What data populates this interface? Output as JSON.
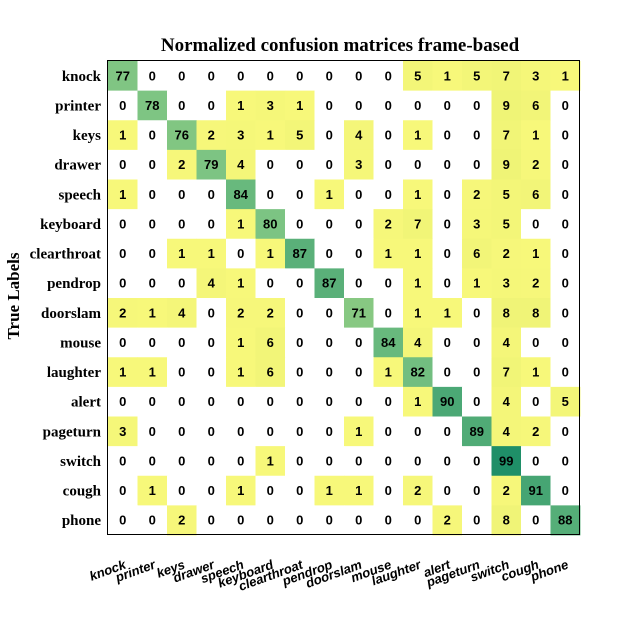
{
  "chart_data": {
    "type": "heatmap",
    "title": "Normalized confusion matrices frame-based",
    "ylabel": "True Labels",
    "xlabel": "",
    "row_labels": [
      "knock",
      "printer",
      "keys",
      "drawer",
      "speech",
      "keyboard",
      "clearthroat",
      "pendrop",
      "doorslam",
      "mouse",
      "laughter",
      "alert",
      "pageturn",
      "switch",
      "cough",
      "phone"
    ],
    "col_labels": [
      "knock",
      "printer",
      "keys",
      "drawer",
      "speech",
      "keyboard",
      "clearthroat",
      "pendrop",
      "doorslam",
      "mouse",
      "laughter",
      "alert",
      "pageturn",
      "switch",
      "cough",
      "phone"
    ],
    "values": [
      [
        77,
        0,
        0,
        0,
        0,
        0,
        0,
        0,
        0,
        0,
        5,
        1,
        5,
        7,
        3,
        1
      ],
      [
        0,
        78,
        0,
        0,
        1,
        3,
        1,
        0,
        0,
        0,
        0,
        0,
        0,
        9,
        6,
        0
      ],
      [
        1,
        0,
        76,
        2,
        3,
        1,
        5,
        0,
        4,
        0,
        1,
        0,
        0,
        7,
        1,
        0
      ],
      [
        0,
        0,
        2,
        79,
        4,
        0,
        0,
        0,
        3,
        0,
        0,
        0,
        0,
        9,
        2,
        0
      ],
      [
        1,
        0,
        0,
        0,
        84,
        0,
        0,
        1,
        0,
        0,
        1,
        0,
        2,
        5,
        6,
        0
      ],
      [
        0,
        0,
        0,
        0,
        1,
        80,
        0,
        0,
        0,
        2,
        7,
        0,
        3,
        5,
        0,
        0
      ],
      [
        0,
        0,
        1,
        1,
        0,
        1,
        87,
        0,
        0,
        1,
        1,
        0,
        6,
        2,
        1,
        0
      ],
      [
        0,
        0,
        0,
        4,
        1,
        0,
        0,
        87,
        0,
        0,
        1,
        0,
        1,
        3,
        2,
        0
      ],
      [
        2,
        1,
        4,
        0,
        2,
        2,
        0,
        0,
        71,
        0,
        1,
        1,
        0,
        8,
        8,
        0
      ],
      [
        0,
        0,
        0,
        0,
        1,
        6,
        0,
        0,
        0,
        84,
        4,
        0,
        0,
        4,
        0,
        0
      ],
      [
        1,
        1,
        0,
        0,
        1,
        6,
        0,
        0,
        0,
        1,
        82,
        0,
        0,
        7,
        1,
        0
      ],
      [
        0,
        0,
        0,
        0,
        0,
        0,
        0,
        0,
        0,
        0,
        1,
        90,
        0,
        4,
        0,
        5
      ],
      [
        3,
        0,
        0,
        0,
        0,
        0,
        0,
        0,
        1,
        0,
        0,
        0,
        89,
        4,
        2,
        0
      ],
      [
        0,
        0,
        0,
        0,
        0,
        1,
        0,
        0,
        0,
        0,
        0,
        0,
        0,
        99,
        0,
        0
      ],
      [
        0,
        1,
        0,
        0,
        1,
        0,
        0,
        1,
        1,
        0,
        2,
        0,
        0,
        2,
        91,
        0
      ],
      [
        0,
        0,
        2,
        0,
        0,
        0,
        0,
        0,
        0,
        0,
        0,
        2,
        0,
        8,
        0,
        88
      ]
    ],
    "colormap": {
      "zero": "#ffffff",
      "low": "#f7f87a",
      "mid": "#7cc483",
      "high": "#1f8f68"
    },
    "grid": false,
    "legend": "none"
  }
}
